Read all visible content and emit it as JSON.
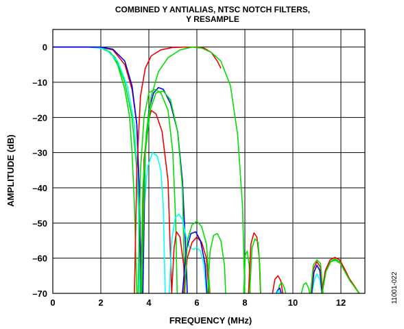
{
  "chart_data": {
    "type": "line",
    "title_lines": [
      "COMBINED Y ANTIALIAS, NTSC NOTCH FILTERS,",
      "Y RESAMPLE"
    ],
    "xlabel": "FREQUENCY (MHz)",
    "ylabel": "AMPLITUDE (dB)",
    "xlim": [
      0,
      13
    ],
    "ylim": [
      -70,
      5
    ],
    "x_ticks": [
      0,
      2,
      4,
      6,
      8,
      10,
      12
    ],
    "x_tick_labels": [
      "0",
      "2",
      "4",
      "6",
      "8",
      "10",
      "12"
    ],
    "y_ticks": [
      0,
      -10,
      -20,
      -30,
      -40,
      -50,
      -60,
      -70
    ],
    "y_tick_labels": [
      "0",
      "–10",
      "–20",
      "–30",
      "–40",
      "–50",
      "–60",
      "–70"
    ],
    "grid": true,
    "figure_id": "11001-022",
    "series": [
      {
        "color": "#00dd00",
        "points": [
          [
            0,
            0
          ],
          [
            1.5,
            0
          ],
          [
            2.0,
            -0.3
          ],
          [
            2.4,
            -1.5
          ],
          [
            2.7,
            -5
          ],
          [
            3.0,
            -12
          ],
          [
            3.2,
            -20
          ],
          [
            3.3,
            -30
          ],
          [
            3.4,
            -45
          ],
          [
            3.5,
            -70
          ]
        ]
      },
      {
        "color": "#00dd00",
        "points": [
          [
            0,
            0
          ],
          [
            1.8,
            0
          ],
          [
            2.2,
            -0.5
          ],
          [
            2.6,
            -3
          ],
          [
            3.0,
            -10
          ],
          [
            3.3,
            -20
          ],
          [
            3.5,
            -35
          ],
          [
            3.6,
            -52
          ],
          [
            3.7,
            -70
          ]
        ]
      },
      {
        "color": "#00ffff",
        "points": [
          [
            0,
            0
          ],
          [
            1.7,
            0
          ],
          [
            2.2,
            -0.6
          ],
          [
            2.7,
            -4
          ],
          [
            3.1,
            -11
          ],
          [
            3.4,
            -22
          ],
          [
            3.55,
            -40
          ],
          [
            3.62,
            -70
          ]
        ]
      },
      {
        "color": "#ee0000",
        "points": [
          [
            0,
            0
          ],
          [
            2.0,
            0
          ],
          [
            2.5,
            -0.8
          ],
          [
            3.0,
            -5
          ],
          [
            3.3,
            -12
          ],
          [
            3.5,
            -22
          ],
          [
            3.6,
            -40
          ],
          [
            3.68,
            -70
          ]
        ]
      },
      {
        "color": "#0000ee",
        "points": [
          [
            0,
            0
          ],
          [
            2.0,
            0
          ],
          [
            2.5,
            -0.6
          ],
          [
            3.0,
            -4
          ],
          [
            3.3,
            -11
          ],
          [
            3.5,
            -22
          ],
          [
            3.62,
            -45
          ],
          [
            3.66,
            -70
          ]
        ]
      },
      {
        "color": "#00ffff",
        "points": [
          [
            3.72,
            -70
          ],
          [
            3.8,
            -45
          ],
          [
            3.95,
            -34
          ],
          [
            4.15,
            -30
          ],
          [
            4.35,
            -31
          ],
          [
            4.5,
            -35
          ],
          [
            4.6,
            -45
          ],
          [
            4.68,
            -70
          ]
        ]
      },
      {
        "color": "#ee0000",
        "points": [
          [
            3.7,
            -70
          ],
          [
            3.8,
            -32
          ],
          [
            3.95,
            -22
          ],
          [
            4.1,
            -18
          ],
          [
            4.3,
            -19
          ],
          [
            4.55,
            -24
          ],
          [
            4.8,
            -38
          ],
          [
            4.95,
            -70
          ]
        ]
      },
      {
        "color": "#0000ee",
        "points": [
          [
            3.75,
            -70
          ],
          [
            3.85,
            -30
          ],
          [
            4.0,
            -18
          ],
          [
            4.2,
            -13
          ],
          [
            4.4,
            -11.5
          ],
          [
            4.6,
            -12
          ],
          [
            4.9,
            -16
          ],
          [
            5.2,
            -24
          ],
          [
            5.4,
            -38
          ],
          [
            5.55,
            -60
          ],
          [
            5.6,
            -70
          ]
        ]
      },
      {
        "color": "#00dd00",
        "points": [
          [
            3.55,
            -70
          ],
          [
            3.65,
            -35
          ],
          [
            3.8,
            -20
          ],
          [
            4.0,
            -13
          ],
          [
            4.25,
            -12
          ],
          [
            4.5,
            -13
          ],
          [
            4.8,
            -18
          ],
          [
            5.0,
            -30
          ],
          [
            5.12,
            -50
          ],
          [
            5.18,
            -70
          ]
        ]
      },
      {
        "color": "#00dd00",
        "points": [
          [
            3.7,
            -70
          ],
          [
            3.85,
            -30
          ],
          [
            4.05,
            -18
          ],
          [
            4.3,
            -13
          ],
          [
            4.6,
            -12.5
          ],
          [
            4.9,
            -15
          ],
          [
            5.2,
            -24
          ],
          [
            5.4,
            -40
          ],
          [
            5.5,
            -70
          ]
        ]
      },
      {
        "color": "#ee0000",
        "points": [
          [
            3.4,
            -70
          ],
          [
            3.5,
            -35
          ],
          [
            3.65,
            -14
          ],
          [
            3.85,
            -6
          ],
          [
            4.1,
            -2.5
          ],
          [
            4.5,
            -0.8
          ],
          [
            5.0,
            -0.1
          ],
          [
            5.5,
            0
          ],
          [
            6.0,
            0
          ],
          [
            6.3,
            -0.3
          ],
          [
            6.6,
            -1.5
          ],
          [
            6.85,
            -4
          ],
          [
            7.0,
            -6
          ]
        ]
      },
      {
        "color": "#00dd00",
        "points": [
          [
            3.65,
            -70
          ],
          [
            3.75,
            -40
          ],
          [
            3.9,
            -24
          ],
          [
            4.1,
            -14
          ],
          [
            4.4,
            -7
          ],
          [
            4.8,
            -3
          ],
          [
            5.3,
            -0.8
          ],
          [
            5.8,
            0
          ],
          [
            6.2,
            -0.3
          ],
          [
            6.6,
            -1.5
          ],
          [
            7.0,
            -4
          ],
          [
            7.4,
            -11
          ],
          [
            7.7,
            -25
          ],
          [
            7.9,
            -45
          ],
          [
            8.0,
            -70
          ]
        ]
      },
      {
        "color": "#00ffff",
        "points": [
          [
            4.85,
            -70
          ],
          [
            4.95,
            -55
          ],
          [
            5.1,
            -48.5
          ],
          [
            5.25,
            -47.5
          ],
          [
            5.4,
            -49
          ],
          [
            5.55,
            -54
          ],
          [
            5.7,
            -57
          ],
          [
            5.85,
            -57.5
          ],
          [
            6.0,
            -57
          ],
          [
            6.15,
            -58
          ],
          [
            6.3,
            -62
          ],
          [
            6.4,
            -70
          ]
        ]
      },
      {
        "color": "#ee0000",
        "points": [
          [
            4.95,
            -70
          ],
          [
            5.05,
            -57
          ],
          [
            5.15,
            -52.5
          ],
          [
            5.3,
            -54
          ],
          [
            5.45,
            -62
          ],
          [
            5.5,
            -70
          ]
        ]
      },
      {
        "color": "#ee0000",
        "points": [
          [
            5.45,
            -70
          ],
          [
            5.6,
            -60
          ],
          [
            5.8,
            -55.5
          ],
          [
            6.0,
            -54
          ],
          [
            6.2,
            -55.5
          ],
          [
            6.4,
            -60
          ],
          [
            6.5,
            -70
          ]
        ]
      },
      {
        "color": "#0000ee",
        "points": [
          [
            5.4,
            -70
          ],
          [
            5.55,
            -58
          ],
          [
            5.75,
            -53
          ],
          [
            5.95,
            -52.5
          ],
          [
            6.15,
            -55
          ],
          [
            6.35,
            -62
          ],
          [
            6.42,
            -70
          ]
        ]
      },
      {
        "color": "#00dd00",
        "points": [
          [
            5.5,
            -70
          ],
          [
            5.6,
            -55
          ],
          [
            5.8,
            -50.5
          ],
          [
            6.0,
            -49.5
          ],
          [
            6.2,
            -51
          ],
          [
            6.4,
            -56
          ],
          [
            6.55,
            -70
          ]
        ]
      },
      {
        "color": "#00dd00",
        "points": [
          [
            6.45,
            -70
          ],
          [
            6.55,
            -58
          ],
          [
            6.7,
            -53.5
          ],
          [
            6.85,
            -53
          ],
          [
            7.0,
            -55
          ],
          [
            7.15,
            -62
          ],
          [
            7.2,
            -70
          ]
        ]
      },
      {
        "color": "#00dd00",
        "points": [
          [
            7.95,
            -70
          ],
          [
            8.02,
            -59
          ],
          [
            8.1,
            -58
          ],
          [
            8.18,
            -62
          ],
          [
            8.22,
            -70
          ]
        ]
      },
      {
        "color": "#ee0000",
        "points": [
          [
            8.15,
            -70
          ],
          [
            8.25,
            -56
          ],
          [
            8.38,
            -52.8
          ],
          [
            8.5,
            -54
          ],
          [
            8.6,
            -60
          ],
          [
            8.65,
            -70
          ]
        ]
      },
      {
        "color": "#00dd00",
        "points": [
          [
            8.2,
            -70
          ],
          [
            8.3,
            -57
          ],
          [
            8.42,
            -54.5
          ],
          [
            8.55,
            -55.5
          ],
          [
            8.62,
            -62
          ],
          [
            8.66,
            -70
          ]
        ]
      },
      {
        "color": "#ee0000",
        "points": [
          [
            9.15,
            -70
          ],
          [
            9.25,
            -66
          ],
          [
            9.38,
            -65
          ],
          [
            9.5,
            -66.5
          ],
          [
            9.58,
            -70
          ]
        ]
      },
      {
        "color": "#00dd00",
        "points": [
          [
            9.35,
            -70
          ],
          [
            9.45,
            -67.5
          ],
          [
            9.55,
            -67
          ],
          [
            9.65,
            -68.5
          ],
          [
            9.7,
            -70
          ]
        ]
      },
      {
        "color": "#0000ee",
        "points": [
          [
            9.3,
            -70
          ],
          [
            9.38,
            -69
          ],
          [
            9.45,
            -68.5
          ],
          [
            9.52,
            -70
          ]
        ]
      },
      {
        "color": "#00ffff",
        "points": [
          [
            9.32,
            -70
          ],
          [
            9.4,
            -69.2
          ],
          [
            9.48,
            -70
          ]
        ]
      },
      {
        "color": "#00dd00",
        "points": [
          [
            10.35,
            -70
          ],
          [
            10.45,
            -67.5
          ],
          [
            10.55,
            -67
          ],
          [
            10.65,
            -68.5
          ],
          [
            10.7,
            -70
          ]
        ]
      },
      {
        "color": "#00ffff",
        "points": [
          [
            10.8,
            -70
          ],
          [
            10.9,
            -66
          ],
          [
            11.0,
            -64.5
          ],
          [
            11.12,
            -66
          ],
          [
            11.2,
            -70
          ]
        ]
      },
      {
        "color": "#0000ee",
        "points": [
          [
            10.78,
            -70
          ],
          [
            10.88,
            -64
          ],
          [
            11.0,
            -62
          ],
          [
            11.12,
            -63.5
          ],
          [
            11.22,
            -70
          ]
        ]
      },
      {
        "color": "#ee0000",
        "points": [
          [
            10.76,
            -70
          ],
          [
            10.86,
            -63
          ],
          [
            11.0,
            -61
          ],
          [
            11.14,
            -62.5
          ],
          [
            11.24,
            -70
          ]
        ]
      },
      {
        "color": "#00dd00",
        "points": [
          [
            10.74,
            -70
          ],
          [
            10.85,
            -62
          ],
          [
            11.0,
            -60.5
          ],
          [
            11.15,
            -61.5
          ],
          [
            11.26,
            -70
          ]
        ]
      },
      {
        "color": "#00dd00",
        "points": [
          [
            11.2,
            -70
          ],
          [
            11.35,
            -64
          ],
          [
            11.55,
            -61
          ],
          [
            11.75,
            -60.2
          ],
          [
            11.95,
            -61
          ],
          [
            12.15,
            -63.5
          ],
          [
            12.35,
            -66
          ],
          [
            12.55,
            -68
          ],
          [
            12.7,
            -69.5
          ],
          [
            12.75,
            -70
          ]
        ]
      },
      {
        "color": "#ee0000",
        "points": [
          [
            11.2,
            -70
          ],
          [
            11.35,
            -63.5
          ],
          [
            11.55,
            -60.5
          ],
          [
            11.75,
            -59.8
          ],
          [
            11.95,
            -60.5
          ],
          [
            12.15,
            -63
          ],
          [
            12.35,
            -65.8
          ],
          [
            12.55,
            -67.8
          ],
          [
            12.7,
            -69.3
          ],
          [
            12.76,
            -70
          ]
        ]
      },
      {
        "color": "#00dd00",
        "points": [
          [
            11.22,
            -70
          ],
          [
            11.38,
            -63.8
          ],
          [
            11.58,
            -61
          ],
          [
            11.78,
            -60.6
          ],
          [
            11.98,
            -61.5
          ],
          [
            12.18,
            -64
          ],
          [
            12.38,
            -66.5
          ],
          [
            12.58,
            -68.3
          ],
          [
            12.72,
            -69.6
          ],
          [
            12.78,
            -70
          ]
        ]
      }
    ]
  }
}
